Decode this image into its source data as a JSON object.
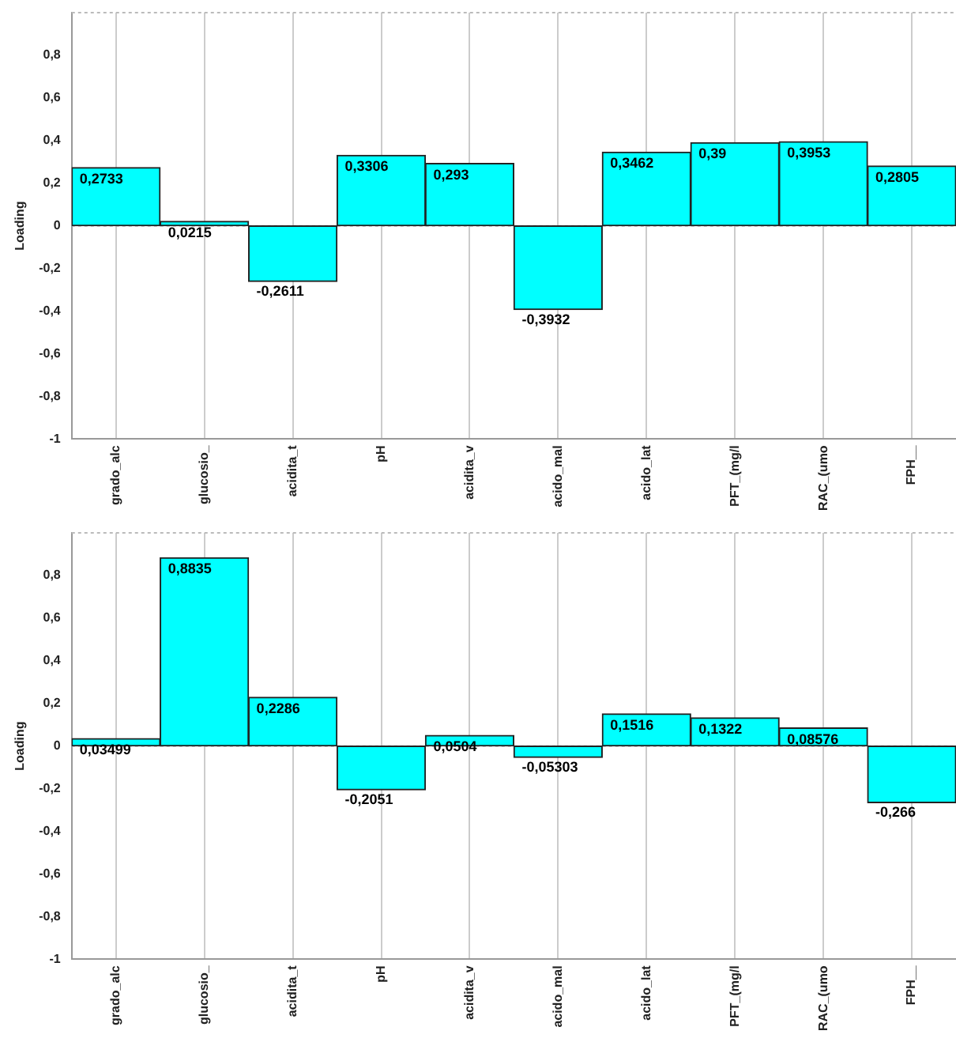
{
  "chart_data": [
    {
      "type": "bar",
      "ylabel": "Loading",
      "categories": [
        "grado_alc",
        "glucosio_",
        "acidita_t",
        "pH",
        "acidita_v",
        "acido_mal",
        "acido_lat",
        "PFT_(mg/l",
        "RAC_(umo",
        "FPH__"
      ],
      "ref_lines": [
        {
          "axis": "y",
          "value": 0,
          "color": "#bbbbbb",
          "line_style": "dashed"
        }
      ],
      "values": [
        0.2733,
        0.0215,
        -0.2611,
        0.3306,
        0.293,
        -0.3932,
        0.3462,
        0.39,
        0.3953,
        0.2805
      ],
      "value_labels": [
        "0,2733",
        "0,0215",
        "-0,2611",
        "0,3306",
        "0,293",
        "-0,3932",
        "0,3462",
        "0,39",
        "0,3953",
        "0,2805"
      ],
      "color": "#00ffff",
      "ylim": [
        -1,
        1
      ],
      "yticks": [
        {
          "value": -1,
          "label": "-1"
        },
        {
          "value": -0.8,
          "label": "-0,8"
        },
        {
          "value": -0.6,
          "label": "-0,6"
        },
        {
          "value": -0.4,
          "label": "-0,4"
        },
        {
          "value": -0.2,
          "label": "-0,2"
        },
        {
          "value": 0,
          "label": "0"
        },
        {
          "value": 0.2,
          "label": "0,2"
        },
        {
          "value": 0.4,
          "label": "0,4"
        },
        {
          "value": 0.6,
          "label": "0,6"
        },
        {
          "value": 0.8,
          "label": "0,8"
        }
      ],
      "grid": "x",
      "legend": false
    },
    {
      "type": "bar",
      "ylabel": "Loading",
      "categories": [
        "grado_alc",
        "glucosio_",
        "acidita_t",
        "pH",
        "acidita_v",
        "acido_mal",
        "acido_lat",
        "PFT_(mg/l",
        "RAC_(umo",
        "FPH__"
      ],
      "ref_lines": [
        {
          "axis": "y",
          "value": 0,
          "color": "#bbbbbb",
          "line_style": "dashed"
        }
      ],
      "values": [
        0.03499,
        0.8835,
        0.2286,
        -0.2051,
        0.0504,
        -0.05303,
        0.1516,
        0.1322,
        0.08576,
        -0.266
      ],
      "value_labels": [
        "0,03499",
        "0,8835",
        "0,2286",
        "-0,2051",
        "0,0504",
        "-0,05303",
        "0,1516",
        "0,1322",
        "0,08576",
        "-0,266"
      ],
      "color": "#00ffff",
      "ylim": [
        -1,
        1
      ],
      "yticks": [
        {
          "value": -1,
          "label": "-1"
        },
        {
          "value": -0.8,
          "label": "-0,8"
        },
        {
          "value": -0.6,
          "label": "-0,6"
        },
        {
          "value": -0.4,
          "label": "-0,4"
        },
        {
          "value": -0.2,
          "label": "-0,2"
        },
        {
          "value": 0,
          "label": "0"
        },
        {
          "value": 0.2,
          "label": "0,2"
        },
        {
          "value": 0.4,
          "label": "0,4"
        },
        {
          "value": 0.6,
          "label": "0,6"
        },
        {
          "value": 0.8,
          "label": "0,8"
        }
      ],
      "grid": "x",
      "legend": false
    }
  ]
}
